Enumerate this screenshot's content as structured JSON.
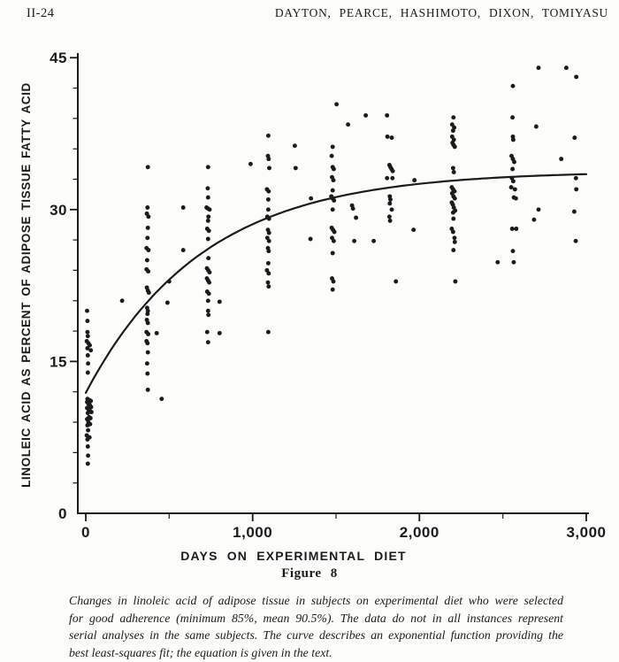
{
  "page": {
    "page_number": "II-24",
    "running_head": "DAYTON, PEARCE, HASHIMOTO, DIXON, TOMIYASU"
  },
  "figure": {
    "label": "Figure 8",
    "caption_lines": [
      "Changes in linoleic acid of adipose tissue in subjects on experimental diet who were selected",
      "for good adherence (minimum 85%, mean 90.5%). The data do not in all instances represent",
      "serial analyses in the same subjects. The curve describes an exponential function providing the",
      "best least-squares fit; the equation is given in the text."
    ]
  },
  "chart_data": {
    "type": "scatter",
    "title": "",
    "xlabel": "DAYS ON EXPERIMENTAL DIET",
    "ylabel": "LINOLEIC ACID AS PERCENT OF ADIPOSE TISSUE FATTY ACID",
    "grid": false,
    "legend": false,
    "ink_color": "#1b1b1b",
    "x_axis": {
      "range": [
        0,
        3000
      ],
      "major_ticks": [
        0,
        1000,
        2000,
        3000
      ],
      "tick_labels": [
        "0",
        "1,000",
        "2,000",
        "3,000"
      ],
      "minor_ticks": [
        500,
        1500,
        2500
      ]
    },
    "y_axis": {
      "range": [
        0,
        45
      ],
      "major_ticks": [
        0,
        15,
        30,
        45
      ],
      "minor_tick_step": 3
    },
    "curve": {
      "kind": "exponential least-squares fit",
      "params": {
        "asymptote": 33.8,
        "amplitude": 21.9,
        "tau_days": 700
      },
      "x_range": [
        0,
        3000
      ]
    },
    "points": [
      [
        8,
        20.0
      ],
      [
        10,
        19.0
      ],
      [
        10,
        17.9
      ],
      [
        12,
        17.5
      ],
      [
        6,
        17.0
      ],
      [
        16,
        16.8
      ],
      [
        24,
        16.6
      ],
      [
        10,
        16.3
      ],
      [
        30,
        16.1
      ],
      [
        12,
        15.6
      ],
      [
        14,
        14.8
      ],
      [
        12,
        13.9
      ],
      [
        10,
        11.3
      ],
      [
        20,
        11.2
      ],
      [
        30,
        11.1
      ],
      [
        8,
        11.0
      ],
      [
        16,
        10.8
      ],
      [
        24,
        10.7
      ],
      [
        32,
        10.5
      ],
      [
        8,
        10.4
      ],
      [
        18,
        10.2
      ],
      [
        26,
        10.1
      ],
      [
        34,
        10.0
      ],
      [
        12,
        9.9
      ],
      [
        20,
        9.5
      ],
      [
        28,
        9.4
      ],
      [
        8,
        9.3
      ],
      [
        16,
        9.0
      ],
      [
        26,
        8.8
      ],
      [
        10,
        8.7
      ],
      [
        14,
        8.2
      ],
      [
        6,
        7.7
      ],
      [
        22,
        7.5
      ],
      [
        10,
        7.3
      ],
      [
        12,
        6.6
      ],
      [
        14,
        5.7
      ],
      [
        12,
        4.9
      ],
      [
        218,
        21.0
      ],
      [
        372,
        34.2
      ],
      [
        370,
        30.2
      ],
      [
        366,
        29.6
      ],
      [
        376,
        29.3
      ],
      [
        372,
        28.2
      ],
      [
        370,
        27.2
      ],
      [
        364,
        26.2
      ],
      [
        376,
        26.0
      ],
      [
        368,
        25.0
      ],
      [
        364,
        24.1
      ],
      [
        374,
        23.9
      ],
      [
        366,
        22.3
      ],
      [
        372,
        22.0
      ],
      [
        378,
        21.8
      ],
      [
        368,
        20.3
      ],
      [
        372,
        20.0
      ],
      [
        370,
        19.7
      ],
      [
        366,
        19.1
      ],
      [
        372,
        18.8
      ],
      [
        364,
        17.9
      ],
      [
        374,
        17.7
      ],
      [
        364,
        17.0
      ],
      [
        370,
        16.8
      ],
      [
        372,
        15.9
      ],
      [
        368,
        14.8
      ],
      [
        370,
        13.8
      ],
      [
        372,
        12.2
      ],
      [
        425,
        17.8
      ],
      [
        455,
        11.3
      ],
      [
        490,
        20.8
      ],
      [
        500,
        22.9
      ],
      [
        584,
        30.2
      ],
      [
        584,
        26.0
      ],
      [
        733,
        34.2
      ],
      [
        731,
        32.1
      ],
      [
        733,
        31.2
      ],
      [
        724,
        30.2
      ],
      [
        733,
        30.1
      ],
      [
        742,
        30.0
      ],
      [
        735,
        29.3
      ],
      [
        733,
        28.9
      ],
      [
        728,
        28.1
      ],
      [
        738,
        27.9
      ],
      [
        733,
        27.1
      ],
      [
        735,
        25.2
      ],
      [
        726,
        24.2
      ],
      [
        734,
        24.0
      ],
      [
        742,
        23.8
      ],
      [
        726,
        23.2
      ],
      [
        733,
        23.0
      ],
      [
        740,
        22.8
      ],
      [
        728,
        21.9
      ],
      [
        738,
        21.7
      ],
      [
        733,
        21.0
      ],
      [
        733,
        20.0
      ],
      [
        735,
        19.6
      ],
      [
        728,
        17.9
      ],
      [
        733,
        16.9
      ],
      [
        802,
        20.9
      ],
      [
        802,
        17.8
      ],
      [
        988,
        34.5
      ],
      [
        1094,
        37.3
      ],
      [
        1092,
        35.3
      ],
      [
        1096,
        35.0
      ],
      [
        1100,
        34.1
      ],
      [
        1086,
        32.0
      ],
      [
        1096,
        31.8
      ],
      [
        1094,
        31.0
      ],
      [
        1094,
        30.0
      ],
      [
        1088,
        29.3
      ],
      [
        1098,
        29.1
      ],
      [
        1092,
        28.0
      ],
      [
        1098,
        27.7
      ],
      [
        1088,
        27.2
      ],
      [
        1098,
        26.9
      ],
      [
        1092,
        26.2
      ],
      [
        1096,
        25.9
      ],
      [
        1094,
        24.7
      ],
      [
        1086,
        24.0
      ],
      [
        1096,
        23.7
      ],
      [
        1092,
        22.8
      ],
      [
        1096,
        22.4
      ],
      [
        1094,
        17.9
      ],
      [
        1253,
        36.3
      ],
      [
        1258,
        34.1
      ],
      [
        1350,
        31.1
      ],
      [
        1347,
        27.1
      ],
      [
        1503,
        40.4
      ],
      [
        1480,
        36.2
      ],
      [
        1474,
        35.3
      ],
      [
        1480,
        34.2
      ],
      [
        1486,
        34.0
      ],
      [
        1476,
        33.2
      ],
      [
        1484,
        32.9
      ],
      [
        1480,
        31.9
      ],
      [
        1472,
        31.3
      ],
      [
        1480,
        31.1
      ],
      [
        1488,
        30.9
      ],
      [
        1480,
        30.0
      ],
      [
        1474,
        28.2
      ],
      [
        1482,
        28.0
      ],
      [
        1490,
        27.8
      ],
      [
        1476,
        27.2
      ],
      [
        1486,
        26.9
      ],
      [
        1480,
        25.7
      ],
      [
        1476,
        23.2
      ],
      [
        1484,
        22.9
      ],
      [
        1480,
        22.1
      ],
      [
        1572,
        38.4
      ],
      [
        1678,
        39.3
      ],
      [
        1596,
        30.4
      ],
      [
        1602,
        30.1
      ],
      [
        1620,
        29.2
      ],
      [
        1609,
        26.9
      ],
      [
        1726,
        26.9
      ],
      [
        1806,
        39.3
      ],
      [
        1808,
        37.2
      ],
      [
        1834,
        37.1
      ],
      [
        1820,
        34.4
      ],
      [
        1826,
        34.2
      ],
      [
        1833,
        34.0
      ],
      [
        1840,
        33.8
      ],
      [
        1806,
        33.1
      ],
      [
        1838,
        33.1
      ],
      [
        1822,
        31.3
      ],
      [
        1826,
        31.0
      ],
      [
        1822,
        30.6
      ],
      [
        1834,
        30.0
      ],
      [
        1820,
        29.3
      ],
      [
        1824,
        28.9
      ],
      [
        1859,
        22.9
      ],
      [
        1970,
        32.9
      ],
      [
        1965,
        28.0
      ],
      [
        2204,
        39.1
      ],
      [
        2196,
        38.4
      ],
      [
        2208,
        38.1
      ],
      [
        2202,
        37.8
      ],
      [
        2196,
        37.2
      ],
      [
        2206,
        36.9
      ],
      [
        2198,
        36.6
      ],
      [
        2204,
        36.4
      ],
      [
        2212,
        36.2
      ],
      [
        2202,
        34.1
      ],
      [
        2206,
        33.7
      ],
      [
        2194,
        32.2
      ],
      [
        2202,
        32.0
      ],
      [
        2210,
        31.8
      ],
      [
        2196,
        31.6
      ],
      [
        2204,
        31.3
      ],
      [
        2212,
        31.1
      ],
      [
        2194,
        30.7
      ],
      [
        2200,
        30.5
      ],
      [
        2206,
        30.2
      ],
      [
        2214,
        29.9
      ],
      [
        2202,
        29.7
      ],
      [
        2204,
        29.1
      ],
      [
        2194,
        28.1
      ],
      [
        2202,
        27.8
      ],
      [
        2210,
        27.2
      ],
      [
        2212,
        26.8
      ],
      [
        2204,
        26.0
      ],
      [
        2215,
        22.9
      ],
      [
        2469,
        24.8
      ],
      [
        2560,
        42.2
      ],
      [
        2558,
        39.1
      ],
      [
        2560,
        37.2
      ],
      [
        2562,
        36.9
      ],
      [
        2552,
        35.3
      ],
      [
        2560,
        35.0
      ],
      [
        2568,
        34.7
      ],
      [
        2558,
        34.0
      ],
      [
        2554,
        33.1
      ],
      [
        2562,
        32.8
      ],
      [
        2550,
        32.2
      ],
      [
        2572,
        32.0
      ],
      [
        2566,
        31.2
      ],
      [
        2578,
        31.1
      ],
      [
        2556,
        28.1
      ],
      [
        2580,
        28.1
      ],
      [
        2560,
        25.9
      ],
      [
        2565,
        24.8
      ],
      [
        2714,
        44.0
      ],
      [
        2700,
        38.2
      ],
      [
        2714,
        30.0
      ],
      [
        2687,
        29.0
      ],
      [
        2880,
        44.0
      ],
      [
        2940,
        43.1
      ],
      [
        2930,
        37.1
      ],
      [
        2850,
        35.0
      ],
      [
        2938,
        33.1
      ],
      [
        2940,
        32.0
      ],
      [
        2928,
        29.8
      ],
      [
        2937,
        26.9
      ]
    ]
  }
}
